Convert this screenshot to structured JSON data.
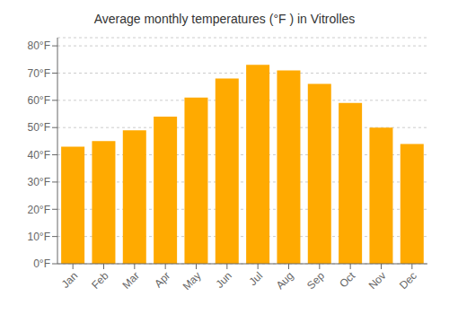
{
  "chart_data": {
    "type": "bar",
    "title": "Average monthly temperatures (°F ) in Vitrolles",
    "categories": [
      "Jan",
      "Feb",
      "Mar",
      "Apr",
      "May",
      "Jun",
      "Jul",
      "Aug",
      "Sep",
      "Oct",
      "Nov",
      "Dec"
    ],
    "values": [
      43,
      45,
      49,
      54,
      61,
      68,
      73,
      71,
      66,
      59,
      50,
      44
    ],
    "color": "#FFAA00",
    "ylim": [
      0,
      83
    ],
    "yticks": [
      {
        "value": 0,
        "label": "0°F"
      },
      {
        "value": 10,
        "label": "10°F"
      },
      {
        "value": 20,
        "label": "20°F"
      },
      {
        "value": 30,
        "label": "30°F"
      },
      {
        "value": 40,
        "label": "40°F"
      },
      {
        "value": 50,
        "label": "50°F"
      },
      {
        "value": 60,
        "label": "60°F"
      },
      {
        "value": 70,
        "label": "70°F"
      },
      {
        "value": 80,
        "label": "80°F"
      }
    ],
    "grid": true
  }
}
